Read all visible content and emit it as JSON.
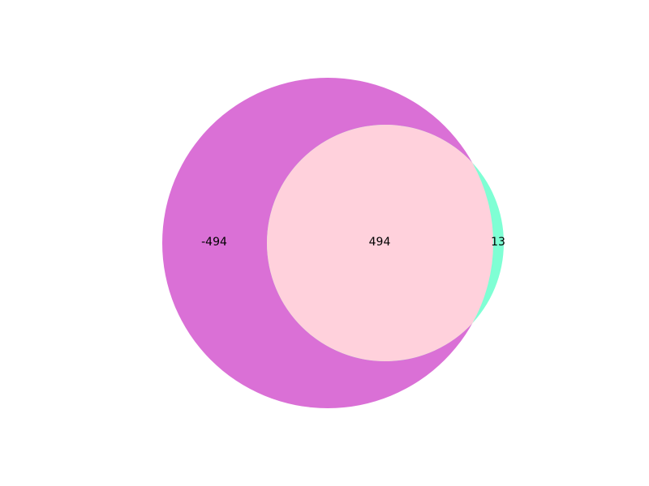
{
  "diagram": {
    "type": "venn2",
    "sets": [
      {
        "id": "A",
        "color": "#da70d6"
      },
      {
        "id": "B",
        "color": "#7fffd4"
      }
    ],
    "regions": {
      "A_only": "-494",
      "A_and_B": "494",
      "B_only": "13"
    },
    "intersection_color": "#ffd1dc",
    "background": "#ffffff"
  }
}
